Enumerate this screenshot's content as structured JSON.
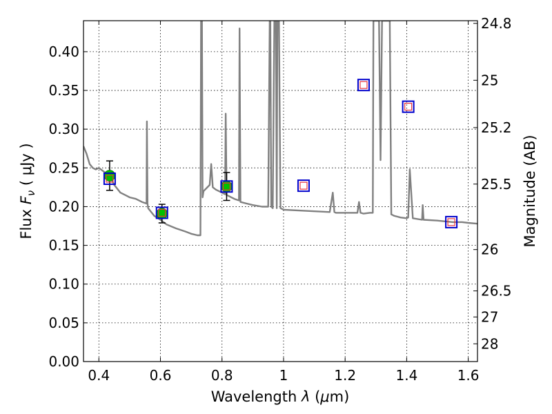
{
  "chart_data": {
    "type": "line",
    "x_range": [
      0.35,
      1.63
    ],
    "y_range": [
      0.0,
      0.44
    ],
    "grid": true,
    "xlabel": {
      "prefix": "Wavelength  ",
      "symbol": "λ",
      "unit_open": " (",
      "unit_mu": "μ",
      "unit_rest": "m)"
    },
    "ylabel": {
      "prefix": "Flux  ",
      "symbol": "F",
      "sub": "ν",
      "unit": "  ( μJy )"
    },
    "y2label": "Magnitude (AB)",
    "x_ticks": [
      {
        "value": 0.4,
        "label": "0.4"
      },
      {
        "value": 0.6,
        "label": "0.6"
      },
      {
        "value": 0.8,
        "label": "0.8"
      },
      {
        "value": 1.0,
        "label": "1"
      },
      {
        "value": 1.2,
        "label": "1.2"
      },
      {
        "value": 1.4,
        "label": "1.4"
      },
      {
        "value": 1.6,
        "label": "1.6"
      }
    ],
    "y_ticks": [
      {
        "value": 0.0,
        "label": "0.00"
      },
      {
        "value": 0.05,
        "label": "0.05"
      },
      {
        "value": 0.1,
        "label": "0.10"
      },
      {
        "value": 0.15,
        "label": "0.15"
      },
      {
        "value": 0.2,
        "label": "0.20"
      },
      {
        "value": 0.25,
        "label": "0.25"
      },
      {
        "value": 0.3,
        "label": "0.30"
      },
      {
        "value": 0.35,
        "label": "0.35"
      },
      {
        "value": 0.4,
        "label": "0.40"
      }
    ],
    "y2_ticks": [
      {
        "mag": 24.8,
        "label": "24.8"
      },
      {
        "mag": 25,
        "label": "25"
      },
      {
        "mag": 25.2,
        "label": "25.2"
      },
      {
        "mag": 25.5,
        "label": "25.5"
      },
      {
        "mag": 26,
        "label": "26"
      },
      {
        "mag": 26.5,
        "label": "26.5"
      },
      {
        "mag": 27,
        "label": "27"
      },
      {
        "mag": 28,
        "label": "28"
      }
    ],
    "series": [
      {
        "kind": "model-spectrum",
        "color": "#808080",
        "x": [
          0.35,
          0.36,
          0.37,
          0.38,
          0.39,
          0.4,
          0.41,
          0.42,
          0.43,
          0.44,
          0.45,
          0.47,
          0.49,
          0.5,
          0.52,
          0.54,
          0.555,
          0.556,
          0.558,
          0.56,
          0.58,
          0.6,
          0.62,
          0.65,
          0.68,
          0.7,
          0.72,
          0.73,
          0.732,
          0.735,
          0.737,
          0.74,
          0.76,
          0.765,
          0.77,
          0.78,
          0.8,
          0.81,
          0.812,
          0.815,
          0.82,
          0.84,
          0.855,
          0.857,
          0.86,
          0.88,
          0.9,
          0.93,
          0.95,
          0.955,
          0.957,
          0.96,
          0.965,
          0.97,
          0.975,
          0.978,
          0.98,
          0.985,
          0.99,
          1.0,
          1.05,
          1.1,
          1.15,
          1.16,
          1.165,
          1.17,
          1.2,
          1.24,
          1.245,
          1.25,
          1.26,
          1.28,
          1.29,
          1.292,
          1.3,
          1.31,
          1.315,
          1.32,
          1.33,
          1.345,
          1.35,
          1.36,
          1.38,
          1.4,
          1.405,
          1.41,
          1.42,
          1.45,
          1.452,
          1.455,
          1.5,
          1.55,
          1.58,
          1.6,
          1.63
        ],
        "y": [
          0.278,
          0.268,
          0.255,
          0.25,
          0.248,
          0.25,
          0.247,
          0.244,
          0.24,
          0.236,
          0.228,
          0.218,
          0.214,
          0.212,
          0.21,
          0.206,
          0.204,
          0.31,
          0.204,
          0.198,
          0.188,
          0.183,
          0.177,
          0.172,
          0.168,
          0.165,
          0.163,
          0.163,
          0.44,
          0.44,
          0.212,
          0.22,
          0.228,
          0.255,
          0.225,
          0.222,
          0.218,
          0.216,
          0.32,
          0.215,
          0.214,
          0.21,
          0.208,
          0.43,
          0.206,
          0.204,
          0.202,
          0.2,
          0.2,
          0.44,
          0.44,
          0.2,
          0.198,
          0.44,
          0.44,
          0.198,
          0.44,
          0.44,
          0.198,
          0.196,
          0.195,
          0.194,
          0.193,
          0.218,
          0.193,
          0.192,
          0.192,
          0.192,
          0.206,
          0.192,
          0.191,
          0.192,
          0.192,
          0.44,
          0.44,
          0.44,
          0.26,
          0.44,
          0.44,
          0.44,
          0.19,
          0.188,
          0.186,
          0.185,
          0.186,
          0.248,
          0.185,
          0.183,
          0.202,
          0.183,
          0.182,
          0.18,
          0.18,
          0.179,
          0.178
        ]
      },
      {
        "kind": "observed-photometry",
        "color": "#00c000",
        "points": [
          {
            "x": 0.435,
            "y": 0.24,
            "err": 0.019
          },
          {
            "x": 0.605,
            "y": 0.191,
            "err": 0.012
          },
          {
            "x": 0.815,
            "y": 0.226,
            "err": 0.018
          }
        ]
      },
      {
        "kind": "model-photometry",
        "outer_color": "#0000cc",
        "inner_color": "#e8323c",
        "points": [
          {
            "x": 0.435,
            "y": 0.236
          },
          {
            "x": 0.605,
            "y": 0.192
          },
          {
            "x": 0.815,
            "y": 0.226
          },
          {
            "x": 1.065,
            "y": 0.227
          },
          {
            "x": 1.26,
            "y": 0.357
          },
          {
            "x": 1.405,
            "y": 0.329
          },
          {
            "x": 1.545,
            "y": 0.18
          }
        ]
      }
    ]
  }
}
